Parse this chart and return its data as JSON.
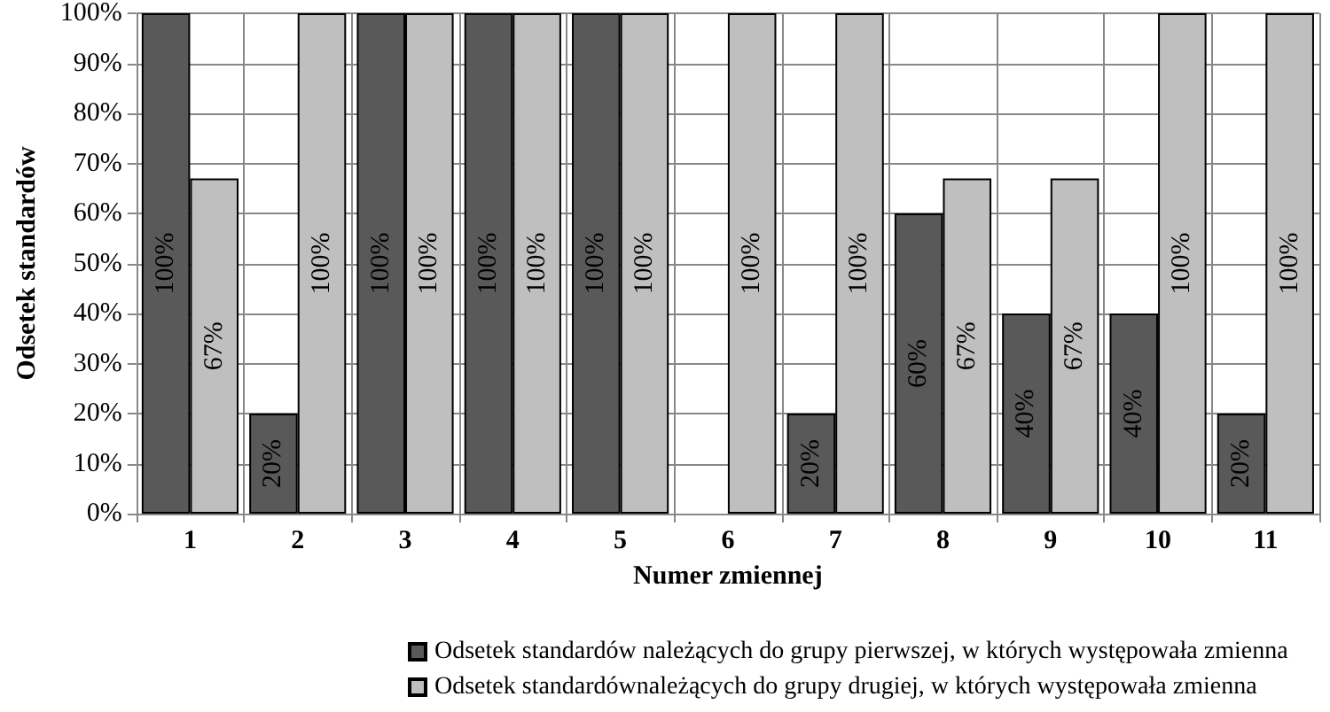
{
  "chart_data": {
    "type": "bar",
    "xlabel": "Numer zmiennej",
    "ylabel": "Odsetek standardów",
    "categories": [
      "1",
      "2",
      "3",
      "4",
      "5",
      "6",
      "7",
      "8",
      "9",
      "10",
      "11"
    ],
    "series": [
      {
        "name": "Odsetek standardów należących do grupy pierwszej, w których występowała zmienna",
        "color": "#595959",
        "values": [
          100,
          20,
          100,
          100,
          100,
          null,
          20,
          60,
          40,
          40,
          20
        ],
        "value_labels": [
          "100%",
          "20%",
          "100%",
          "100%",
          "100%",
          null,
          "20%",
          "60%",
          "40%",
          "40%",
          "20%"
        ]
      },
      {
        "name": "Odsetek standardównależących do grupy drugiej, w których występowała zmienna",
        "color": "#bfbfbf",
        "values": [
          67,
          100,
          100,
          100,
          100,
          100,
          100,
          67,
          67,
          100,
          100
        ],
        "value_labels": [
          "67%",
          "100%",
          "100%",
          "100%",
          "100%",
          "100%",
          "100%",
          "67%",
          "67%",
          "100%",
          "100%"
        ]
      }
    ],
    "ylim": [
      0,
      100
    ],
    "yticks": [
      {
        "value": 0,
        "label": "0%"
      },
      {
        "value": 10,
        "label": "10%"
      },
      {
        "value": 20,
        "label": "20%"
      },
      {
        "value": 30,
        "label": "30%"
      },
      {
        "value": 40,
        "label": "40%"
      },
      {
        "value": 50,
        "label": "50%"
      },
      {
        "value": 60,
        "label": "60%"
      },
      {
        "value": 70,
        "label": "70%"
      },
      {
        "value": 80,
        "label": "80%"
      },
      {
        "value": 90,
        "label": "90%"
      },
      {
        "value": 100,
        "label": "100%"
      }
    ],
    "grid": true,
    "legend": "bottom"
  }
}
